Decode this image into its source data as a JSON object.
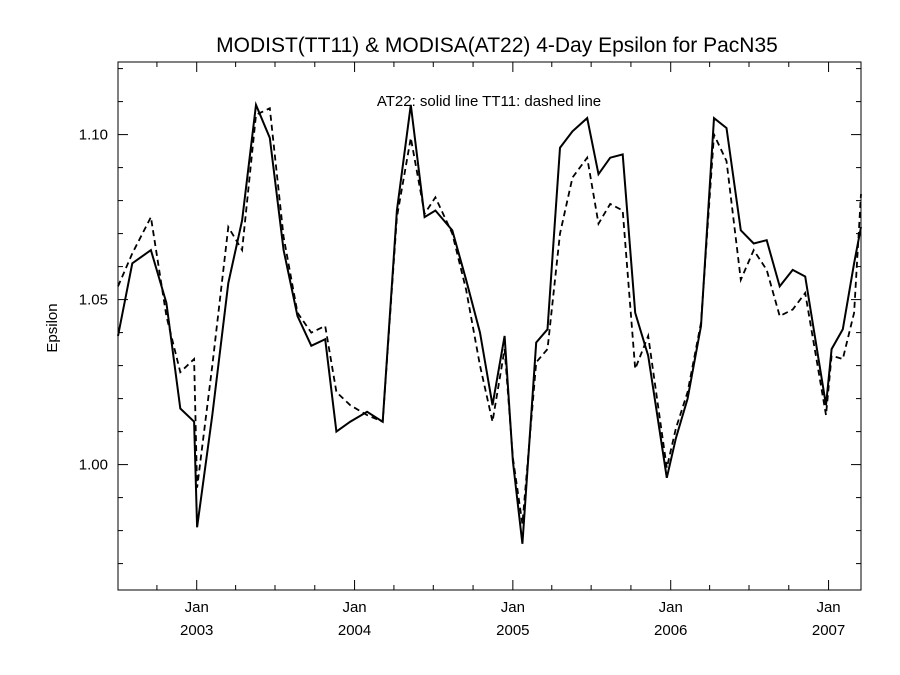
{
  "chart_data": {
    "type": "line",
    "title": "MODIST(TT11) & MODISA(AT22) 4-Day Epsilon for PacN35",
    "xlabel": "",
    "ylabel": "Epsilon",
    "annotation": "AT22: solid line   TT11: dashed line",
    "xlim": [
      "2002-07-03",
      "2007-03-17"
    ],
    "ylim": [
      0.962,
      1.122
    ],
    "y_ticks": [
      1.0,
      1.05,
      1.1
    ],
    "y_tick_labels": [
      "1.00",
      "1.05",
      "1.10"
    ],
    "x_ticks": [
      "2003-01-01",
      "2004-01-01",
      "2005-01-01",
      "2006-01-01",
      "2007-01-01"
    ],
    "x_tick_month_labels": [
      "Jan",
      "Jan",
      "Jan",
      "Jan",
      "Jan"
    ],
    "x_tick_year_labels": [
      "2003",
      "2004",
      "2005",
      "2006",
      "2007"
    ],
    "grid": false,
    "series": [
      {
        "name": "AT22",
        "line_style": "solid",
        "color": "#000000",
        "x": [
          "2002-07-03",
          "2002-08-05",
          "2002-09-17",
          "2002-10-23",
          "2002-11-24",
          "2002-12-26",
          "2003-01-02",
          "2003-02-06",
          "2003-03-15",
          "2003-04-16",
          "2003-05-18",
          "2003-06-19",
          "2003-07-21",
          "2003-08-22",
          "2003-09-23",
          "2003-10-25",
          "2003-11-20",
          "2003-12-22",
          "2004-01-30",
          "2004-03-06",
          "2004-04-08",
          "2004-05-10",
          "2004-06-11",
          "2004-07-06",
          "2004-08-14",
          "2004-09-15",
          "2004-10-17",
          "2004-11-15",
          "2004-12-13",
          "2005-01-01",
          "2005-01-23",
          "2005-02-24",
          "2005-03-22",
          "2005-04-20",
          "2005-05-19",
          "2005-06-22",
          "2005-07-18",
          "2005-08-14",
          "2005-09-12",
          "2005-10-11",
          "2005-11-10",
          "2005-12-23",
          "2006-01-13",
          "2006-02-09",
          "2006-03-12",
          "2006-04-11",
          "2006-05-10",
          "2006-06-12",
          "2006-07-12",
          "2006-08-11",
          "2006-09-10",
          "2006-10-10",
          "2006-11-08",
          "2006-12-26",
          "2007-01-08",
          "2007-02-03",
          "2007-03-01",
          "2007-03-17"
        ],
        "values": [
          1.039,
          1.061,
          1.065,
          1.049,
          1.017,
          1.013,
          0.981,
          1.015,
          1.055,
          1.074,
          1.109,
          1.099,
          1.065,
          1.045,
          1.036,
          1.038,
          1.01,
          1.013,
          1.016,
          1.013,
          1.077,
          1.109,
          1.075,
          1.077,
          1.071,
          1.056,
          1.04,
          1.018,
          1.039,
          1.001,
          0.976,
          1.037,
          1.041,
          1.096,
          1.101,
          1.105,
          1.088,
          1.093,
          1.094,
          1.046,
          1.033,
          0.996,
          1.008,
          1.02,
          1.042,
          1.105,
          1.102,
          1.071,
          1.067,
          1.068,
          1.054,
          1.059,
          1.057,
          1.018,
          1.035,
          1.041,
          1.061,
          1.072
        ]
      },
      {
        "name": "TT11",
        "line_style": "dashed",
        "color": "#000000",
        "x": [
          "2002-07-03",
          "2002-08-05",
          "2002-09-17",
          "2002-10-23",
          "2002-11-24",
          "2002-12-26",
          "2003-01-02",
          "2003-02-06",
          "2003-03-15",
          "2003-04-16",
          "2003-05-18",
          "2003-06-19",
          "2003-07-21",
          "2003-08-22",
          "2003-09-23",
          "2003-10-25",
          "2003-11-20",
          "2003-12-22",
          "2004-01-30",
          "2004-03-06",
          "2004-04-08",
          "2004-05-10",
          "2004-06-11",
          "2004-07-06",
          "2004-08-14",
          "2004-09-15",
          "2004-10-17",
          "2004-11-15",
          "2004-12-13",
          "2005-01-01",
          "2005-01-23",
          "2005-02-24",
          "2005-03-22",
          "2005-04-20",
          "2005-05-19",
          "2005-06-22",
          "2005-07-18",
          "2005-08-14",
          "2005-09-12",
          "2005-10-11",
          "2005-11-10",
          "2005-12-23",
          "2006-01-13",
          "2006-02-09",
          "2006-03-12",
          "2006-04-11",
          "2006-05-10",
          "2006-06-12",
          "2006-07-12",
          "2006-08-11",
          "2006-09-10",
          "2006-10-10",
          "2006-11-08",
          "2006-12-26",
          "2007-01-08",
          "2007-02-03",
          "2007-03-01",
          "2007-03-17"
        ],
        "values": [
          1.054,
          1.064,
          1.075,
          1.045,
          1.028,
          1.032,
          0.993,
          1.03,
          1.072,
          1.065,
          1.106,
          1.108,
          1.069,
          1.046,
          1.04,
          1.042,
          1.022,
          1.018,
          1.015,
          1.013,
          1.075,
          1.099,
          1.076,
          1.081,
          1.07,
          1.053,
          1.03,
          1.013,
          1.035,
          1.002,
          0.982,
          1.031,
          1.035,
          1.07,
          1.087,
          1.093,
          1.073,
          1.079,
          1.077,
          1.029,
          1.039,
          0.999,
          1.011,
          1.022,
          1.043,
          1.1,
          1.092,
          1.056,
          1.065,
          1.059,
          1.045,
          1.047,
          1.052,
          1.015,
          1.033,
          1.032,
          1.046,
          1.082
        ]
      }
    ]
  }
}
